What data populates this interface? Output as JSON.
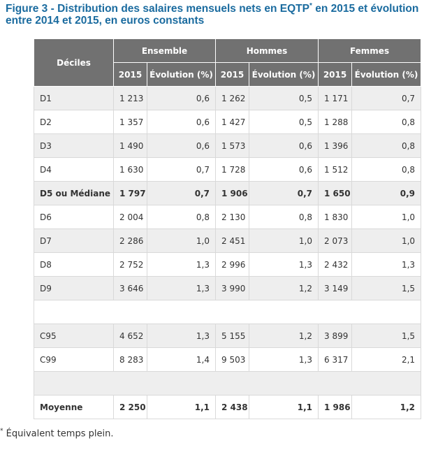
{
  "title": {
    "line1": "Figure 3 - Distribution des salaires mensuels nets en EQTP",
    "mark": "*",
    "line1b": " en 2015 et évolution",
    "line2": "entre 2014 et 2015, en euros constants"
  },
  "headers": {
    "deciles": "Déciles",
    "groups": [
      "Ensemble",
      "Hommes",
      "Femmes"
    ],
    "year": "2015",
    "evolution": "Évolution (%)"
  },
  "rows": [
    {
      "label": "D1",
      "v": [
        "1 213",
        "0,6",
        "1 262",
        "0,5",
        "1 171",
        "0,7"
      ]
    },
    {
      "label": "D2",
      "v": [
        "1 357",
        "0,6",
        "1 427",
        "0,5",
        "1 288",
        "0,8"
      ]
    },
    {
      "label": "D3",
      "v": [
        "1 490",
        "0,6",
        "1 573",
        "0,6",
        "1 396",
        "0,8"
      ]
    },
    {
      "label": "D4",
      "v": [
        "1 630",
        "0,7",
        "1 728",
        "0,6",
        "1 512",
        "0,8"
      ]
    },
    {
      "label": "D5 ou Médiane",
      "v": [
        "1 797",
        "0,7",
        "1 906",
        "0,7",
        "1 650",
        "0,9"
      ]
    },
    {
      "label": "D6",
      "v": [
        "2 004",
        "0,8",
        "2 130",
        "0,8",
        "1 830",
        "1,0"
      ]
    },
    {
      "label": "D7",
      "v": [
        "2 286",
        "1,0",
        "2 451",
        "1,0",
        "2 073",
        "1,0"
      ]
    },
    {
      "label": "D8",
      "v": [
        "2 752",
        "1,3",
        "2 996",
        "1,3",
        "2 432",
        "1,3"
      ]
    },
    {
      "label": "D9",
      "v": [
        "3 646",
        "1,3",
        "3 990",
        "1,2",
        "3 149",
        "1,5"
      ]
    },
    {
      "label": "C95",
      "v": [
        "4 652",
        "1,3",
        "5 155",
        "1,2",
        "3 899",
        "1,5"
      ]
    },
    {
      "label": "C99",
      "v": [
        "8 283",
        "1,4",
        "9 503",
        "1,3",
        "6 317",
        "2,1"
      ]
    },
    {
      "label": "Moyenne",
      "v": [
        "2 250",
        "1,1",
        "2 438",
        "1,1",
        "1 986",
        "1,2"
      ]
    }
  ],
  "note": {
    "mark": "*",
    "text": " Équivalent temps plein."
  }
}
